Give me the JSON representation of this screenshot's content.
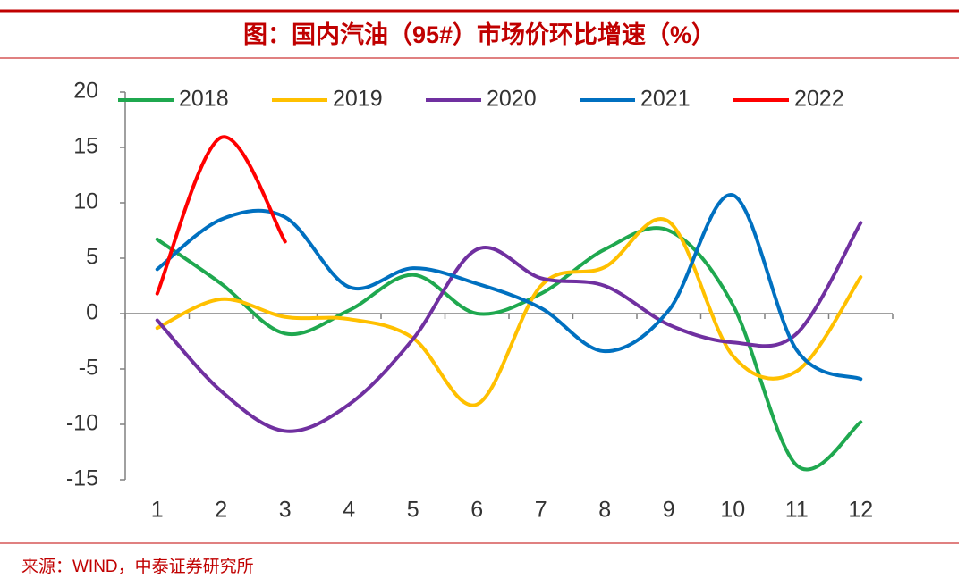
{
  "chart_data": {
    "type": "line",
    "title": "图：国内汽油（95#）市场价环比增速（%）",
    "source": "来源：WIND，中泰证券研究所",
    "categories": [
      "1",
      "2",
      "3",
      "4",
      "5",
      "6",
      "7",
      "8",
      "9",
      "10",
      "11",
      "12"
    ],
    "series": [
      {
        "name": "2018",
        "color": "#1fa84f",
        "values": [
          6.7,
          2.7,
          -1.8,
          0.3,
          3.5,
          0,
          1.8,
          5.8,
          7.5,
          0.8,
          -13.7,
          -9.8
        ]
      },
      {
        "name": "2019",
        "color": "#ffc000",
        "values": [
          -1.3,
          1.3,
          -0.3,
          -0.5,
          -2.2,
          -8.2,
          2.5,
          4.2,
          8.3,
          -3.8,
          -5.2,
          3.3
        ]
      },
      {
        "name": "2020",
        "color": "#7030a0",
        "values": [
          -0.6,
          -7,
          -10.6,
          -8.2,
          -2.3,
          5.8,
          3.2,
          2.5,
          -1,
          -2.6,
          -1.8,
          8.2
        ]
      },
      {
        "name": "2021",
        "color": "#0070c0",
        "values": [
          4,
          8.5,
          8.7,
          2.4,
          4.1,
          2.7,
          0.5,
          -3.4,
          0.3,
          10.7,
          -3.3,
          -5.9
        ]
      },
      {
        "name": "2022",
        "color": "#ff0000",
        "values": [
          1.8,
          15.9,
          6.5,
          null,
          null,
          null,
          null,
          null,
          null,
          null,
          null,
          null
        ]
      }
    ],
    "ylim": [
      -15,
      20
    ],
    "yticks": [
      -15,
      -10,
      -5,
      0,
      5,
      10,
      15,
      20
    ]
  }
}
